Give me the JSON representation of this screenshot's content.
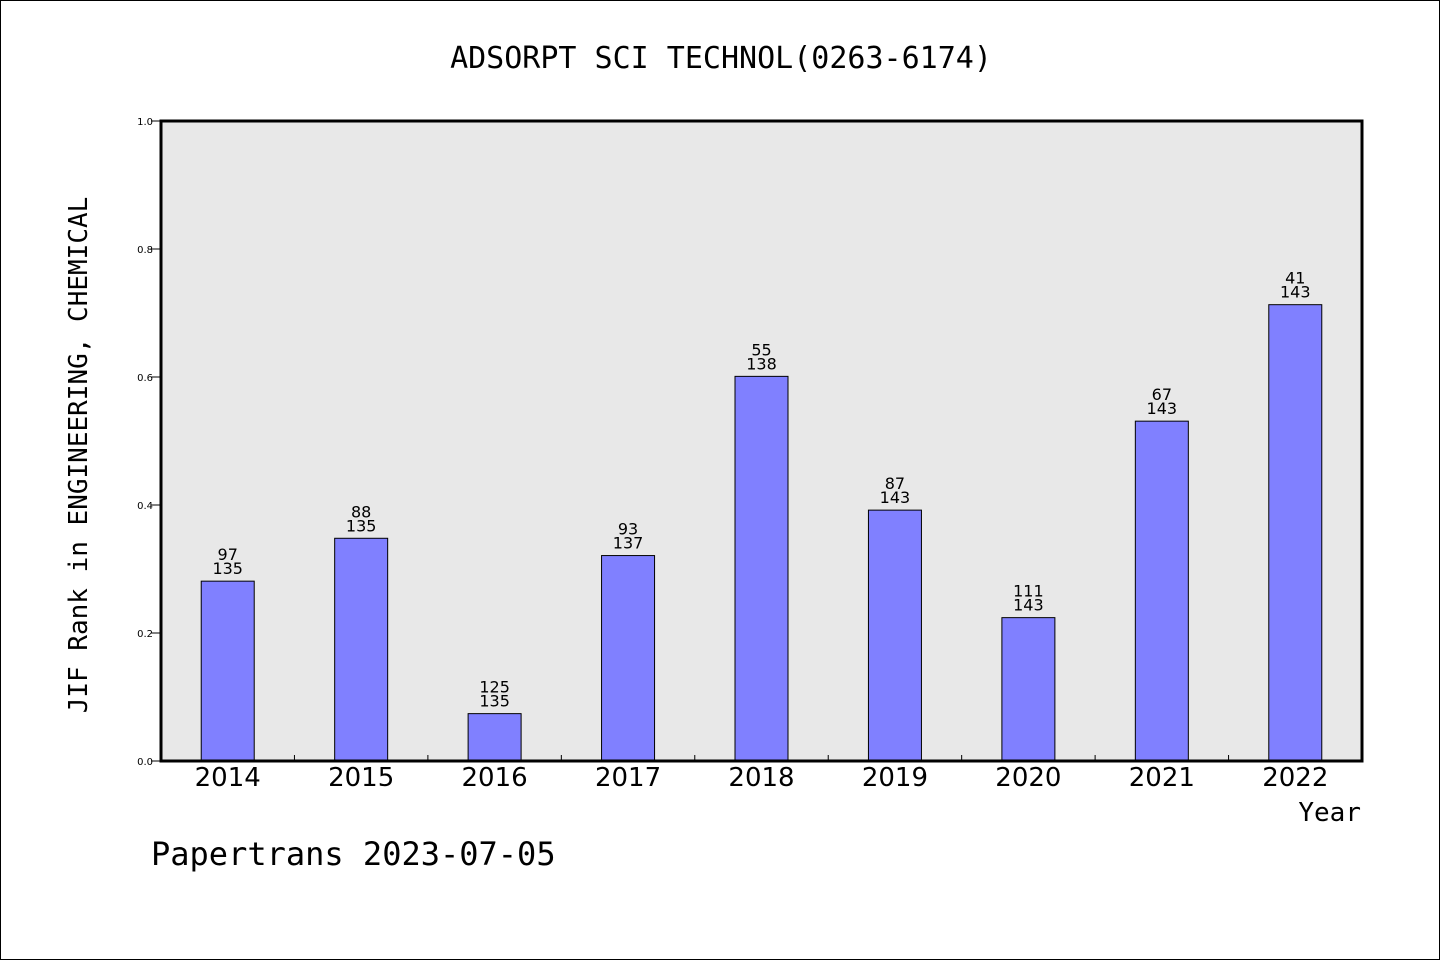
{
  "chart_data": {
    "type": "bar",
    "title": "ADSORPT SCI TECHNOL(0263-6174)",
    "xlabel": "Year",
    "ylabel": "JIF Rank in ENGINEERING, CHEMICAL",
    "ylim": [
      0,
      1.0
    ],
    "yticks": [
      "0.0",
      "0.2",
      "0.4",
      "0.6",
      "0.8",
      "1.0"
    ],
    "ytick_values": [
      0,
      0.2,
      0.4,
      0.6,
      0.8,
      1.0
    ],
    "grid": false,
    "categories": [
      "2014",
      "2015",
      "2016",
      "2017",
      "2018",
      "2019",
      "2020",
      "2021",
      "2022"
    ],
    "values": [
      0.281,
      0.348,
      0.074,
      0.321,
      0.601,
      0.392,
      0.224,
      0.531,
      0.713
    ],
    "rank": [
      "97",
      "88",
      "125",
      "93",
      "55",
      "87",
      "111",
      "67",
      "41"
    ],
    "total": [
      "135",
      "135",
      "135",
      "137",
      "138",
      "143",
      "143",
      "143",
      "143"
    ],
    "bar_color": "#8080ff",
    "plot_background": "#e8e8e8"
  },
  "footer": "Papertrans 2023-07-05"
}
